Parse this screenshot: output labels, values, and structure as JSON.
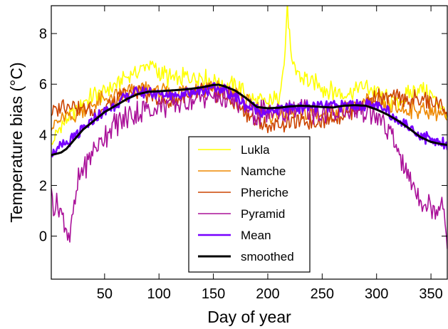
{
  "chart_data": {
    "type": "line",
    "title": "",
    "xlabel": "Day of year",
    "ylabel": "Temperature bias (°C)",
    "xlim": [
      1,
      365
    ],
    "ylim": [
      -1.7,
      9.1
    ],
    "x_ticks": [
      50,
      100,
      150,
      200,
      250,
      300,
      350
    ],
    "y_ticks": [
      0,
      2,
      4,
      6,
      8
    ],
    "grid": false,
    "legend_position": "bottom-center",
    "series": [
      {
        "name": "Lukla",
        "color": "#ffff00",
        "key": "lukla",
        "anchors": [
          [
            1,
            3.6
          ],
          [
            10,
            4.4
          ],
          [
            20,
            4.8
          ],
          [
            30,
            5.3
          ],
          [
            40,
            5.6
          ],
          [
            50,
            5.7
          ],
          [
            60,
            6.0
          ],
          [
            70,
            6.3
          ],
          [
            80,
            6.5
          ],
          [
            90,
            6.8
          ],
          [
            100,
            6.5
          ],
          [
            110,
            6.2
          ],
          [
            120,
            6.2
          ],
          [
            130,
            6.3
          ],
          [
            140,
            6.3
          ],
          [
            150,
            6.1
          ],
          [
            160,
            6.0
          ],
          [
            170,
            5.9
          ],
          [
            180,
            5.6
          ],
          [
            190,
            5.3
          ],
          [
            200,
            5.2
          ],
          [
            210,
            5.5
          ],
          [
            215,
            6.8
          ],
          [
            218,
            9.0
          ],
          [
            222,
            6.8
          ],
          [
            230,
            6.3
          ],
          [
            240,
            6.1
          ],
          [
            250,
            5.9
          ],
          [
            260,
            5.7
          ],
          [
            270,
            5.6
          ],
          [
            280,
            5.8
          ],
          [
            290,
            5.9
          ],
          [
            300,
            5.7
          ],
          [
            310,
            5.4
          ],
          [
            320,
            5.3
          ],
          [
            330,
            5.6
          ],
          [
            340,
            5.9
          ],
          [
            350,
            5.5
          ],
          [
            360,
            5.2
          ],
          [
            365,
            4.8
          ]
        ]
      },
      {
        "name": "Namche",
        "color": "#ee8800",
        "key": "namche",
        "anchors": [
          [
            1,
            4.3
          ],
          [
            10,
            4.6
          ],
          [
            20,
            4.7
          ],
          [
            30,
            5.0
          ],
          [
            40,
            5.2
          ],
          [
            50,
            5.4
          ],
          [
            60,
            5.5
          ],
          [
            70,
            5.7
          ],
          [
            80,
            5.8
          ],
          [
            90,
            5.8
          ],
          [
            100,
            5.7
          ],
          [
            110,
            5.6
          ],
          [
            120,
            5.7
          ],
          [
            130,
            5.8
          ],
          [
            140,
            5.9
          ],
          [
            150,
            5.9
          ],
          [
            160,
            5.8
          ],
          [
            170,
            5.6
          ],
          [
            180,
            5.3
          ],
          [
            190,
            5.0
          ],
          [
            200,
            4.8
          ],
          [
            210,
            4.8
          ],
          [
            220,
            4.9
          ],
          [
            230,
            4.8
          ],
          [
            240,
            4.8
          ],
          [
            250,
            4.8
          ],
          [
            260,
            4.9
          ],
          [
            270,
            5.0
          ],
          [
            280,
            5.1
          ],
          [
            290,
            5.3
          ],
          [
            300,
            5.3
          ],
          [
            310,
            5.1
          ],
          [
            320,
            5.0
          ],
          [
            330,
            5.0
          ],
          [
            340,
            5.0
          ],
          [
            350,
            4.9
          ],
          [
            360,
            4.8
          ],
          [
            365,
            4.5
          ]
        ]
      },
      {
        "name": "Pheriche",
        "color": "#cc4400",
        "key": "pheriche",
        "anchors": [
          [
            1,
            4.8
          ],
          [
            10,
            5.2
          ],
          [
            20,
            5.2
          ],
          [
            30,
            5.0
          ],
          [
            40,
            4.9
          ],
          [
            50,
            5.0
          ],
          [
            60,
            5.3
          ],
          [
            70,
            5.6
          ],
          [
            80,
            5.7
          ],
          [
            90,
            5.6
          ],
          [
            100,
            5.4
          ],
          [
            110,
            5.3
          ],
          [
            120,
            5.4
          ],
          [
            130,
            5.5
          ],
          [
            140,
            5.7
          ],
          [
            150,
            5.7
          ],
          [
            160,
            5.5
          ],
          [
            170,
            5.2
          ],
          [
            180,
            4.9
          ],
          [
            190,
            4.5
          ],
          [
            200,
            4.3
          ],
          [
            210,
            4.4
          ],
          [
            220,
            4.5
          ],
          [
            230,
            4.5
          ],
          [
            240,
            4.5
          ],
          [
            250,
            4.6
          ],
          [
            260,
            4.7
          ],
          [
            270,
            4.8
          ],
          [
            280,
            5.0
          ],
          [
            290,
            5.3
          ],
          [
            300,
            5.5
          ],
          [
            310,
            5.5
          ],
          [
            320,
            5.4
          ],
          [
            330,
            5.4
          ],
          [
            340,
            5.4
          ],
          [
            350,
            5.3
          ],
          [
            360,
            5.2
          ],
          [
            365,
            4.9
          ]
        ]
      },
      {
        "name": "Pyramid",
        "color": "#aa1199",
        "key": "pyramid",
        "anchors": [
          [
            1,
            1.5
          ],
          [
            10,
            0.9
          ],
          [
            18,
            0.0
          ],
          [
            25,
            2.0
          ],
          [
            30,
            2.6
          ],
          [
            40,
            3.4
          ],
          [
            50,
            4.0
          ],
          [
            60,
            4.4
          ],
          [
            70,
            4.7
          ],
          [
            80,
            4.9
          ],
          [
            90,
            5.0
          ],
          [
            100,
            5.1
          ],
          [
            110,
            5.2
          ],
          [
            120,
            5.3
          ],
          [
            130,
            5.4
          ],
          [
            140,
            5.4
          ],
          [
            150,
            5.5
          ],
          [
            160,
            5.5
          ],
          [
            170,
            5.3
          ],
          [
            180,
            5.0
          ],
          [
            190,
            4.8
          ],
          [
            200,
            4.9
          ],
          [
            210,
            4.9
          ],
          [
            220,
            5.0
          ],
          [
            230,
            5.0
          ],
          [
            240,
            4.9
          ],
          [
            250,
            4.8
          ],
          [
            260,
            4.9
          ],
          [
            270,
            5.0
          ],
          [
            280,
            5.0
          ],
          [
            290,
            4.9
          ],
          [
            300,
            4.7
          ],
          [
            310,
            4.2
          ],
          [
            320,
            3.4
          ],
          [
            330,
            2.2
          ],
          [
            340,
            1.5
          ],
          [
            350,
            1.2
          ],
          [
            355,
            0.9
          ],
          [
            360,
            1.6
          ],
          [
            365,
            0.0
          ]
        ]
      },
      {
        "name": "Mean",
        "color": "#7700ff",
        "key": "mean",
        "anchors": [
          [
            1,
            3.3
          ],
          [
            10,
            3.5
          ],
          [
            20,
            3.8
          ],
          [
            30,
            4.2
          ],
          [
            40,
            4.6
          ],
          [
            50,
            4.9
          ],
          [
            60,
            5.2
          ],
          [
            70,
            5.5
          ],
          [
            80,
            5.7
          ],
          [
            90,
            5.7
          ],
          [
            100,
            5.6
          ],
          [
            110,
            5.6
          ],
          [
            120,
            5.6
          ],
          [
            130,
            5.7
          ],
          [
            140,
            5.8
          ],
          [
            150,
            5.8
          ],
          [
            160,
            5.8
          ],
          [
            170,
            5.5
          ],
          [
            180,
            5.2
          ],
          [
            190,
            5.0
          ],
          [
            200,
            4.9
          ],
          [
            210,
            5.0
          ],
          [
            220,
            5.1
          ],
          [
            230,
            5.1
          ],
          [
            240,
            5.1
          ],
          [
            250,
            5.1
          ],
          [
            260,
            5.1
          ],
          [
            270,
            5.2
          ],
          [
            280,
            5.2
          ],
          [
            290,
            5.2
          ],
          [
            300,
            5.1
          ],
          [
            310,
            4.9
          ],
          [
            320,
            4.6
          ],
          [
            330,
            4.3
          ],
          [
            340,
            4.0
          ],
          [
            350,
            3.8
          ],
          [
            360,
            3.7
          ],
          [
            365,
            3.6
          ]
        ]
      },
      {
        "name": "smoothed",
        "color": "#000000",
        "key": "smoothed",
        "anchors": [
          [
            1,
            3.2
          ],
          [
            10,
            3.3
          ],
          [
            15,
            3.45
          ],
          [
            20,
            3.7
          ],
          [
            30,
            4.2
          ],
          [
            40,
            4.55
          ],
          [
            50,
            4.9
          ],
          [
            60,
            5.15
          ],
          [
            70,
            5.4
          ],
          [
            80,
            5.6
          ],
          [
            90,
            5.7
          ],
          [
            100,
            5.72
          ],
          [
            110,
            5.75
          ],
          [
            120,
            5.78
          ],
          [
            130,
            5.82
          ],
          [
            140,
            5.88
          ],
          [
            150,
            5.97
          ],
          [
            155,
            5.98
          ],
          [
            160,
            5.92
          ],
          [
            170,
            5.75
          ],
          [
            180,
            5.45
          ],
          [
            190,
            5.1
          ],
          [
            200,
            5.05
          ],
          [
            210,
            5.07
          ],
          [
            220,
            5.12
          ],
          [
            230,
            5.15
          ],
          [
            240,
            5.13
          ],
          [
            250,
            5.1
          ],
          [
            260,
            5.08
          ],
          [
            270,
            5.15
          ],
          [
            280,
            5.17
          ],
          [
            290,
            5.15
          ],
          [
            300,
            5.0
          ],
          [
            310,
            4.8
          ],
          [
            320,
            4.55
          ],
          [
            330,
            4.25
          ],
          [
            340,
            3.92
          ],
          [
            350,
            3.72
          ],
          [
            360,
            3.63
          ],
          [
            365,
            3.6
          ]
        ]
      }
    ]
  }
}
